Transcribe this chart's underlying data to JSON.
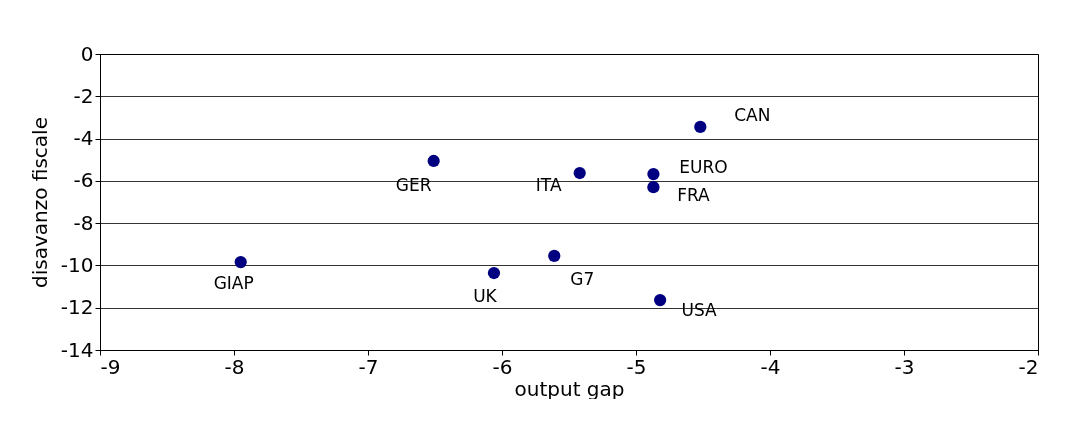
{
  "chart_data": {
    "type": "scatter",
    "xlabel": "output gap",
    "ylabel": "disavanzo fiscale",
    "x": [
      -7.95,
      -6.51,
      -6.06,
      -5.61,
      -5.42,
      -4.87,
      -4.87,
      -4.82,
      -4.52
    ],
    "series": [
      {
        "color": "#000080",
        "values": [
          -9.84,
          -5.06,
          -10.36,
          -9.55,
          -5.63,
          -5.68,
          -6.3,
          -11.64,
          -3.45
        ]
      }
    ],
    "annotations": [
      {
        "text": "GIAP",
        "x": -7.95,
        "y": -9.84
      },
      {
        "text": "GER",
        "x": -6.51,
        "y": -5.06
      },
      {
        "text": "UK",
        "x": -6.06,
        "y": -10.36
      },
      {
        "text": "G7",
        "x": -5.61,
        "y": -9.55
      },
      {
        "text": "ITA",
        "x": -5.42,
        "y": -5.63
      },
      {
        "text": "EURO",
        "x": -4.87,
        "y": -5.68
      },
      {
        "text": "FRA",
        "x": -4.87,
        "y": -6.3
      },
      {
        "text": "USA",
        "x": -4.82,
        "y": -11.64
      },
      {
        "text": "CAN",
        "x": -4.52,
        "y": -3.45
      }
    ],
    "xlim": [
      -9,
      -2
    ],
    "xticks": [
      -9,
      -8,
      -7,
      -6,
      -5,
      -4,
      -3,
      -2
    ],
    "ylim": [
      -14,
      0
    ],
    "yticks": [
      -14,
      -12,
      -10,
      -8,
      -6,
      -4,
      -2,
      0
    ],
    "grid": "y",
    "marker": "circle",
    "legend": false
  }
}
